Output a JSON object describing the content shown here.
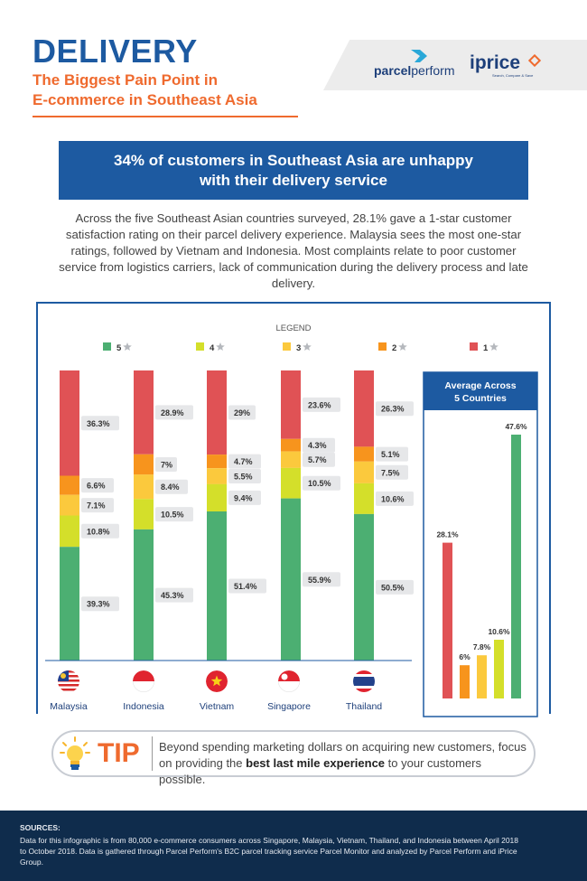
{
  "header": {
    "title": "DELIVERY",
    "subtitle_line1": "The Biggest Pain Point in",
    "subtitle_line2": "E-commerce in Southeast Asia"
  },
  "logos": {
    "parcelperform_a": "parcel",
    "parcelperform_b": "perform",
    "iprice": "iprice",
    "iprice_tag": "Search, Compare & Save"
  },
  "banner": {
    "line1": "34% of customers in Southeast Asia are unhappy",
    "line2": "with their delivery service"
  },
  "intro": "Across the five Southeast Asian countries surveyed, 28.1% gave a 1-star customer satisfaction rating on their parcel delivery experience. Malaysia sees the most one-star ratings, followed by Vietnam and Indonesia. Most complaints relate to poor customer service from logistics carriers, lack of communication during the delivery process and late delivery.",
  "colors": {
    "star5": "#4caf72",
    "star4": "#d4df2a",
    "star3": "#fbc93d",
    "star2": "#f7941d",
    "star1": "#e05255",
    "primary": "#1d5aa1",
    "accent": "#ef6a2e"
  },
  "chart_data": [
    {
      "type": "bar",
      "stacked": true,
      "legend_title": "LEGEND",
      "legend_placement": "top",
      "legend": [
        {
          "label": "5",
          "key": "star5"
        },
        {
          "label": "4",
          "key": "star4"
        },
        {
          "label": "3",
          "key": "star3"
        },
        {
          "label": "2",
          "key": "star2"
        },
        {
          "label": "1",
          "key": "star1"
        }
      ],
      "categories": [
        "Malaysia",
        "Indonesia",
        "Vietnam",
        "Singapore",
        "Thailand"
      ],
      "flags": [
        "malaysia-flag-icon",
        "indonesia-flag-icon",
        "vietnam-flag-icon",
        "singapore-flag-icon",
        "thailand-flag-icon"
      ],
      "unit": "%",
      "series": [
        {
          "name": "5",
          "key": "star5",
          "values": [
            39.3,
            45.3,
            51.4,
            55.9,
            50.5
          ]
        },
        {
          "name": "4",
          "key": "star4",
          "values": [
            10.8,
            10.5,
            9.4,
            10.5,
            10.6
          ]
        },
        {
          "name": "3",
          "key": "star3",
          "values": [
            7.1,
            8.4,
            5.5,
            5.7,
            7.5
          ]
        },
        {
          "name": "2",
          "key": "star2",
          "values": [
            6.6,
            7,
            4.7,
            4.3,
            5.1
          ]
        },
        {
          "name": "1",
          "key": "star1",
          "values": [
            36.3,
            28.9,
            29,
            23.6,
            26.3
          ]
        }
      ],
      "grid": false
    },
    {
      "type": "bar",
      "title_line1": "Average Across",
      "title_line2": "5 Countries",
      "categories": [
        "1",
        "2",
        "3",
        "4",
        "5"
      ],
      "keys": [
        "star1",
        "star2",
        "star3",
        "star4",
        "star5"
      ],
      "values": [
        28.1,
        6,
        7.8,
        10.6,
        47.6
      ],
      "unit": "%",
      "ylim": [
        0,
        50
      ],
      "grid": false
    }
  ],
  "tip": {
    "word": "TIP",
    "text_before": "Beyond spending marketing dollars on acquiring new customers, focus on providing the ",
    "text_bold": "best last mile experience",
    "text_after": " to your customers possible."
  },
  "footer": {
    "sources_title": "SOURCES:",
    "sources_text": "Data for this infographic is from 80,000 e-commerce consumers across Singapore, Malaysia, Vietnam, Thailand, and Indonesia between April 2018 to October 2018. Data is gathered through Parcel Perform's B2C parcel tracking service Parcel Monitor and analyzed by Parcel Perform and iPrice Group."
  }
}
